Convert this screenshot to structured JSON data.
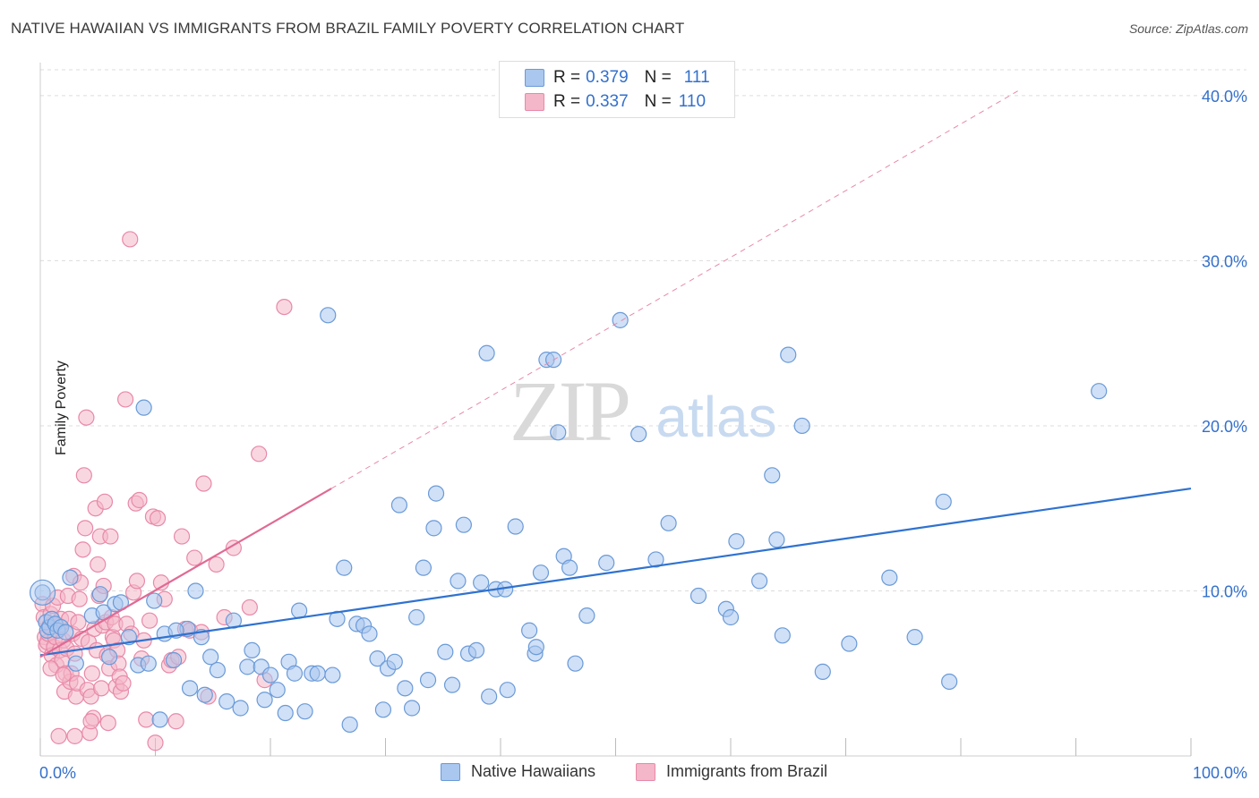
{
  "title": "NATIVE HAWAIIAN VS IMMIGRANTS FROM BRAZIL FAMILY POVERTY CORRELATION CHART",
  "source": "Source: ZipAtlas.com",
  "watermark": {
    "zip": "ZIP",
    "atlas": "atlas"
  },
  "colors": {
    "blue_fill": "#a9c7ef",
    "blue_stroke": "#6a9ad8",
    "blue_line": "#2f72d0",
    "pink_fill": "#f4b6c9",
    "pink_stroke": "#e889a8",
    "pink_line": "#e06a94",
    "axis_text": "#3370cc",
    "grid": "#dcdcdc"
  },
  "legend_top": {
    "rows": [
      {
        "r_label": "R =",
        "r_value": "0.379",
        "n_label": "N =",
        "n_value": "111"
      },
      {
        "r_label": "R =",
        "r_value": "0.337",
        "n_label": "N =",
        "n_value": "110"
      }
    ]
  },
  "bottom_legend": [
    "Native Hawaiians",
    "Immigrants from Brazil"
  ],
  "chart_data": {
    "type": "scatter",
    "title": "NATIVE HAWAIIAN VS IMMIGRANTS FROM BRAZIL FAMILY POVERTY CORRELATION CHART",
    "xlabel": "",
    "ylabel": "Family Poverty",
    "xlim": [
      0,
      100
    ],
    "ylim": [
      0,
      42
    ],
    "x_tick_labels": [
      "0.0%",
      "100.0%"
    ],
    "y_ticks": [
      10,
      20,
      30,
      40
    ],
    "y_tick_labels": [
      "10.0%",
      "20.0%",
      "30.0%",
      "40.0%"
    ],
    "grid": true,
    "legend_position": "top-center",
    "series": [
      {
        "name": "Native Hawaiians",
        "R": 0.379,
        "N": 111,
        "trend": {
          "x": [
            0,
            100
          ],
          "y": [
            6.1,
            16.2
          ],
          "dashed_extension": false
        },
        "points": [
          [
            0.2,
            9.9
          ],
          [
            0.5,
            8.1
          ],
          [
            0.6,
            7.6
          ],
          [
            0.8,
            7.8
          ],
          [
            1.0,
            8.3
          ],
          [
            1.3,
            8.0
          ],
          [
            1.5,
            7.6
          ],
          [
            1.8,
            7.8
          ],
          [
            2.2,
            7.5
          ],
          [
            2.6,
            10.8
          ],
          [
            3.1,
            5.6
          ],
          [
            4.5,
            8.5
          ],
          [
            5.2,
            9.8
          ],
          [
            5.5,
            8.7
          ],
          [
            6.0,
            6.0
          ],
          [
            6.5,
            9.2
          ],
          [
            7.0,
            9.3
          ],
          [
            7.7,
            7.2
          ],
          [
            8.5,
            5.5
          ],
          [
            9.0,
            21.1
          ],
          [
            9.4,
            5.6
          ],
          [
            9.9,
            9.4
          ],
          [
            10.4,
            2.2
          ],
          [
            10.8,
            7.4
          ],
          [
            11.6,
            5.8
          ],
          [
            12.8,
            7.7
          ],
          [
            13.0,
            4.1
          ],
          [
            13.5,
            10.0
          ],
          [
            14.0,
            7.2
          ],
          [
            14.3,
            3.7
          ],
          [
            14.8,
            6.0
          ],
          [
            15.4,
            5.2
          ],
          [
            16.2,
            3.3
          ],
          [
            16.8,
            8.2
          ],
          [
            17.4,
            2.9
          ],
          [
            18.0,
            5.4
          ],
          [
            18.4,
            6.4
          ],
          [
            19.2,
            5.4
          ],
          [
            19.5,
            3.4
          ],
          [
            20.0,
            4.9
          ],
          [
            20.6,
            4.0
          ],
          [
            21.3,
            2.6
          ],
          [
            21.6,
            5.7
          ],
          [
            22.1,
            5.0
          ],
          [
            22.5,
            8.8
          ],
          [
            23.0,
            2.7
          ],
          [
            23.6,
            5.0
          ],
          [
            24.1,
            5.0
          ],
          [
            25.0,
            26.7
          ],
          [
            25.4,
            4.9
          ],
          [
            25.8,
            8.3
          ],
          [
            26.4,
            11.4
          ],
          [
            26.9,
            1.9
          ],
          [
            27.5,
            8.0
          ],
          [
            28.1,
            7.9
          ],
          [
            28.6,
            7.4
          ],
          [
            29.3,
            5.9
          ],
          [
            29.8,
            2.8
          ],
          [
            30.2,
            5.3
          ],
          [
            30.8,
            5.7
          ],
          [
            31.2,
            15.2
          ],
          [
            31.7,
            4.1
          ],
          [
            32.3,
            2.9
          ],
          [
            32.7,
            8.4
          ],
          [
            33.3,
            11.4
          ],
          [
            33.7,
            4.6
          ],
          [
            34.2,
            13.8
          ],
          [
            34.4,
            15.9
          ],
          [
            35.2,
            6.3
          ],
          [
            35.8,
            4.3
          ],
          [
            36.3,
            10.6
          ],
          [
            36.8,
            14.0
          ],
          [
            37.2,
            6.2
          ],
          [
            37.9,
            6.4
          ],
          [
            38.3,
            10.5
          ],
          [
            38.8,
            24.4
          ],
          [
            39.0,
            3.6
          ],
          [
            39.6,
            10.1
          ],
          [
            40.4,
            10.1
          ],
          [
            40.6,
            4.0
          ],
          [
            41.3,
            13.9
          ],
          [
            42.5,
            7.6
          ],
          [
            43.0,
            6.2
          ],
          [
            43.1,
            6.6
          ],
          [
            43.5,
            11.1
          ],
          [
            44.0,
            24.0
          ],
          [
            44.6,
            24.0
          ],
          [
            45.0,
            19.6
          ],
          [
            45.5,
            12.1
          ],
          [
            46.0,
            11.4
          ],
          [
            46.5,
            5.6
          ],
          [
            47.5,
            8.5
          ],
          [
            49.2,
            11.7
          ],
          [
            50.4,
            26.4
          ],
          [
            52.0,
            19.5
          ],
          [
            53.5,
            11.9
          ],
          [
            54.6,
            14.1
          ],
          [
            57.2,
            9.7
          ],
          [
            59.6,
            8.9
          ],
          [
            60.0,
            8.4
          ],
          [
            60.5,
            13.0
          ],
          [
            62.5,
            10.6
          ],
          [
            63.6,
            17.0
          ],
          [
            64.0,
            13.1
          ],
          [
            64.5,
            7.3
          ],
          [
            65.0,
            24.3
          ],
          [
            66.2,
            20.0
          ],
          [
            68.0,
            5.1
          ],
          [
            70.3,
            6.8
          ],
          [
            73.8,
            10.8
          ],
          [
            76.0,
            7.2
          ],
          [
            78.5,
            15.4
          ],
          [
            79.0,
            4.5
          ],
          [
            92.0,
            22.1
          ],
          [
            11.8,
            7.6
          ]
        ]
      },
      {
        "name": "Immigrants from Brazil",
        "R": 0.337,
        "N": 110,
        "trend": {
          "x": [
            0,
            25.3
          ],
          "y": [
            6.0,
            16.2
          ],
          "dashed_extension": {
            "x": [
              25.3,
              85
            ],
            "y": [
              16.2,
              40.3
            ]
          }
        },
        "points": [
          [
            0.2,
            9.2
          ],
          [
            0.3,
            8.4
          ],
          [
            0.4,
            7.2
          ],
          [
            0.5,
            6.7
          ],
          [
            0.6,
            6.9
          ],
          [
            0.7,
            7.4
          ],
          [
            0.8,
            7.9
          ],
          [
            0.9,
            8.6
          ],
          [
            1.0,
            6.1
          ],
          [
            1.1,
            9.1
          ],
          [
            1.2,
            6.6
          ],
          [
            1.3,
            7.2
          ],
          [
            1.4,
            5.5
          ],
          [
            1.5,
            9.6
          ],
          [
            1.6,
            7.9
          ],
          [
            1.7,
            6.4
          ],
          [
            1.8,
            8.3
          ],
          [
            1.9,
            5.8
          ],
          [
            2.0,
            7.0
          ],
          [
            2.1,
            3.9
          ],
          [
            2.2,
            5.0
          ],
          [
            2.3,
            6.5
          ],
          [
            2.4,
            9.7
          ],
          [
            2.5,
            8.3
          ],
          [
            2.6,
            4.5
          ],
          [
            2.7,
            5.0
          ],
          [
            2.8,
            7.4
          ],
          [
            2.9,
            10.9
          ],
          [
            3.0,
            6.2
          ],
          [
            3.1,
            3.6
          ],
          [
            3.2,
            4.4
          ],
          [
            3.3,
            8.1
          ],
          [
            3.4,
            9.5
          ],
          [
            3.5,
            10.5
          ],
          [
            3.6,
            7.1
          ],
          [
            3.7,
            12.5
          ],
          [
            3.8,
            17.0
          ],
          [
            3.9,
            13.8
          ],
          [
            4.0,
            20.5
          ],
          [
            4.1,
            4.0
          ],
          [
            4.2,
            6.9
          ],
          [
            4.3,
            1.4
          ],
          [
            4.4,
            3.6
          ],
          [
            4.5,
            5.0
          ],
          [
            4.6,
            2.3
          ],
          [
            4.7,
            7.7
          ],
          [
            4.8,
            15.0
          ],
          [
            4.9,
            6.4
          ],
          [
            5.0,
            11.6
          ],
          [
            5.1,
            9.7
          ],
          [
            5.2,
            13.3
          ],
          [
            5.3,
            4.1
          ],
          [
            5.4,
            7.9
          ],
          [
            5.5,
            10.3
          ],
          [
            5.6,
            15.4
          ],
          [
            5.7,
            8.1
          ],
          [
            5.8,
            6.1
          ],
          [
            5.9,
            2.0
          ],
          [
            6.0,
            5.3
          ],
          [
            6.1,
            13.3
          ],
          [
            6.2,
            8.4
          ],
          [
            6.3,
            7.2
          ],
          [
            6.4,
            7.0
          ],
          [
            6.5,
            8.0
          ],
          [
            6.6,
            4.2
          ],
          [
            6.7,
            6.4
          ],
          [
            6.8,
            5.6
          ],
          [
            6.9,
            4.8
          ],
          [
            7.0,
            3.9
          ],
          [
            7.2,
            4.4
          ],
          [
            7.4,
            21.6
          ],
          [
            7.5,
            8.0
          ],
          [
            7.8,
            31.3
          ],
          [
            7.9,
            7.4
          ],
          [
            8.1,
            9.9
          ],
          [
            8.3,
            15.3
          ],
          [
            8.4,
            10.6
          ],
          [
            8.6,
            15.5
          ],
          [
            8.8,
            5.9
          ],
          [
            9.0,
            7.0
          ],
          [
            9.2,
            2.2
          ],
          [
            9.5,
            8.2
          ],
          [
            9.8,
            14.5
          ],
          [
            10.0,
            0.8
          ],
          [
            10.2,
            14.4
          ],
          [
            10.5,
            10.5
          ],
          [
            10.8,
            9.5
          ],
          [
            11.2,
            5.5
          ],
          [
            11.4,
            5.8
          ],
          [
            11.8,
            2.1
          ],
          [
            12.0,
            6.0
          ],
          [
            12.3,
            13.3
          ],
          [
            12.6,
            7.7
          ],
          [
            13.0,
            7.6
          ],
          [
            13.4,
            12.0
          ],
          [
            14.0,
            7.5
          ],
          [
            14.2,
            16.5
          ],
          [
            14.6,
            3.6
          ],
          [
            15.3,
            11.6
          ],
          [
            16.0,
            8.4
          ],
          [
            16.8,
            12.6
          ],
          [
            18.2,
            9.0
          ],
          [
            19.5,
            4.6
          ],
          [
            21.2,
            27.2
          ],
          [
            1.6,
            1.2
          ],
          [
            3.0,
            1.2
          ],
          [
            0.9,
            5.3
          ],
          [
            2.0,
            4.9
          ],
          [
            4.4,
            2.1
          ],
          [
            19.0,
            18.3
          ]
        ]
      }
    ]
  }
}
